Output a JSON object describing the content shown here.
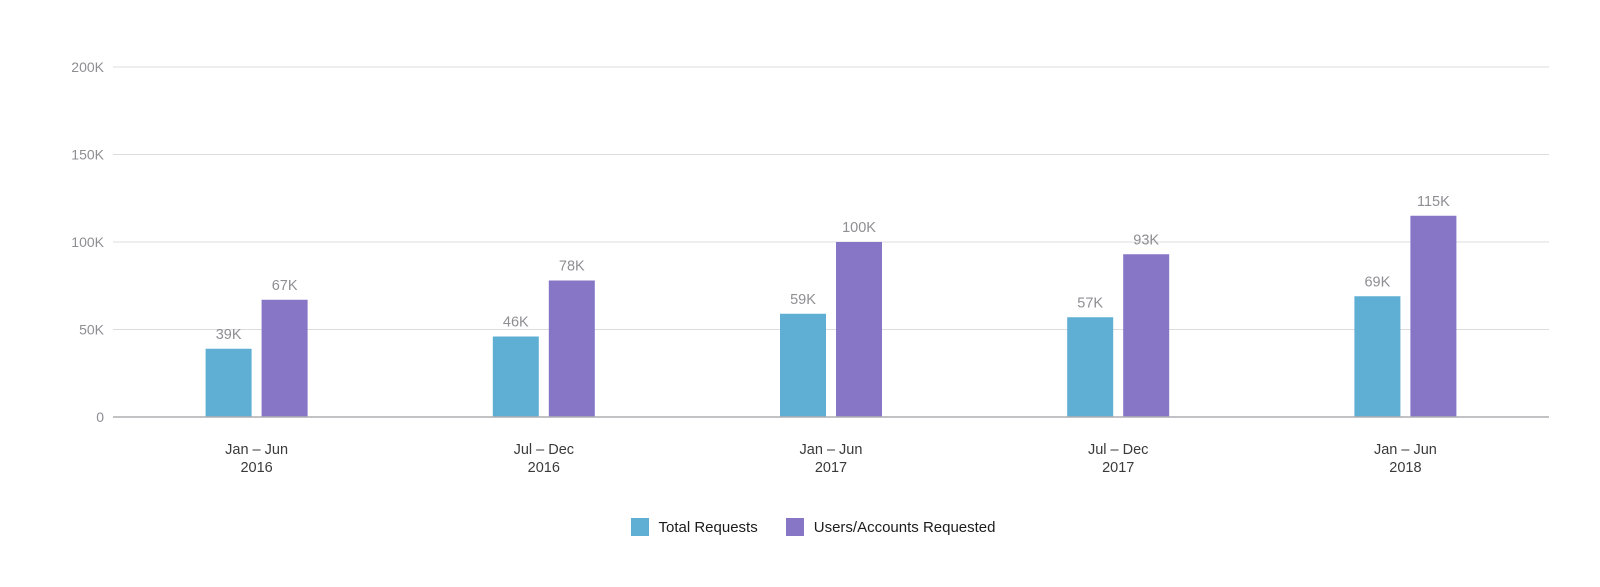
{
  "chart_data": {
    "type": "bar",
    "categories": [
      [
        "Jan – Jun",
        "2016"
      ],
      [
        "Jul – Dec",
        "2016"
      ],
      [
        "Jan – Jun",
        "2017"
      ],
      [
        "Jul – Dec",
        "2017"
      ],
      [
        "Jan – Jun",
        "2018"
      ]
    ],
    "series": [
      {
        "name": "Total Requests",
        "color": "#5eafd3",
        "values": [
          39000,
          46000,
          59000,
          57000,
          69000
        ],
        "labels": [
          "39K",
          "46K",
          "59K",
          "57K",
          "69K"
        ]
      },
      {
        "name": "Users/Accounts Requested",
        "color": "#8776c6",
        "values": [
          67000,
          78000,
          100000,
          93000,
          115000
        ],
        "labels": [
          "67K",
          "78K",
          "100K",
          "93K",
          "115K"
        ]
      }
    ],
    "yticks": [
      0,
      50000,
      100000,
      150000,
      200000
    ],
    "ytick_labels": [
      "0",
      "50K",
      "100K",
      "150K",
      "200K"
    ],
    "ylim": [
      0,
      200000
    ],
    "grid": true,
    "legend_position": "bottom-center"
  }
}
